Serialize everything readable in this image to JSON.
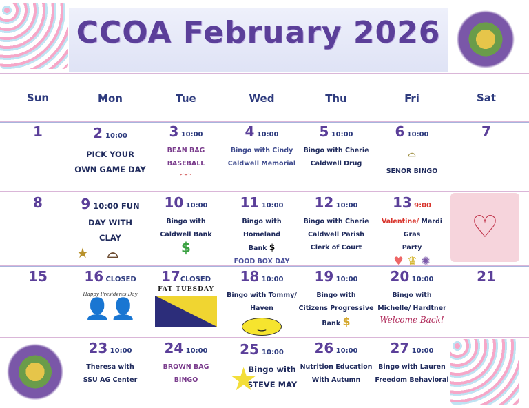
{
  "title": "CCOA February 2026",
  "weekdays": [
    "Sun",
    "Mon",
    "Tue",
    "Wed",
    "Thu",
    "Fri",
    "Sat"
  ],
  "days": {
    "d1": "1",
    "d7": "7",
    "d8": "8",
    "d15": "15",
    "d21": "21",
    "d2": {
      "n": "2",
      "time": "10:00",
      "l1": "PICK YOUR",
      "l2": "OWN GAME DAY"
    },
    "d3": {
      "n": "3",
      "time": "10:00",
      "l1": "BEAN BAG",
      "l2": "BASEBALL"
    },
    "d4": {
      "n": "4",
      "time": "10:00",
      "l1": "Bingo with Cindy",
      "l2": "Caldwell Memorial"
    },
    "d5": {
      "n": "5",
      "time": "10:00",
      "l1": "Bingo with Cherie",
      "l2": "Caldwell Drug"
    },
    "d6": {
      "n": "6",
      "time": "10:00",
      "l1": "SENOR BINGO"
    },
    "d9": {
      "n": "9",
      "time": "10:00  FUN",
      "l1": "DAY WITH",
      "l2": "CLAY"
    },
    "d10": {
      "n": "10",
      "time": "10:00",
      "l1": "Bingo with",
      "l2": "Caldwell Bank"
    },
    "d11": {
      "n": "11",
      "time": "10:00",
      "l1": "Bingo with Homeland",
      "l2": "Bank",
      "l3": "FOOD BOX DAY"
    },
    "d12": {
      "n": "12",
      "time": "10:00",
      "l1": "Bingo with Cherie",
      "l2": "Caldwell Parish",
      "l3": "Clerk of Court"
    },
    "d13": {
      "n": "13",
      "time": "9:00",
      "l1a": "Valentine/",
      "l1b": " Mardi Gras",
      "l2": "Party"
    },
    "d14": {
      "logo": "Happy Valentine's Day"
    },
    "d16": {
      "n": "16",
      "time": "CLOSED",
      "l1": "Happy Presidents Day"
    },
    "d17": {
      "n": "17",
      "time": "CLOSED",
      "l1": "FAT TUESDAY"
    },
    "d18": {
      "n": "18",
      "time": "10:00",
      "l1": "Bingo with Tommy/",
      "l2": "Haven"
    },
    "d19": {
      "n": "19",
      "time": "10:00",
      "l1": "Bingo with",
      "l2": "Citizens Progressive",
      "l3": "Bank"
    },
    "d20": {
      "n": "20",
      "time": "10:00",
      "l1": "Bingo with",
      "l2": "Michelle/ Hardtner",
      "l3": "Welcome Back!"
    },
    "d23": {
      "n": "23",
      "time": "10:00",
      "l1": "Theresa with",
      "l2": "SSU AG Center"
    },
    "d24": {
      "n": "24",
      "time": "10:00",
      "l1": "BROWN BAG",
      "l2": "BINGO"
    },
    "d25": {
      "n": "25",
      "time": "10:00",
      "l1": "Bingo with",
      "l2": "STEVE MAY"
    },
    "d26": {
      "n": "26",
      "time": "10:00",
      "l1": "Nutrition Education",
      "l2": "With Autumn"
    },
    "d27": {
      "n": "27",
      "time": "10:00",
      "l1": "Bingo with Lauren",
      "l2": "Freedom Behavioral"
    }
  },
  "icons": {
    "dollar": "$"
  },
  "colors": {
    "title": "#5b3f99",
    "text": "#2e3b7e",
    "accent_red": "#d8332b"
  }
}
